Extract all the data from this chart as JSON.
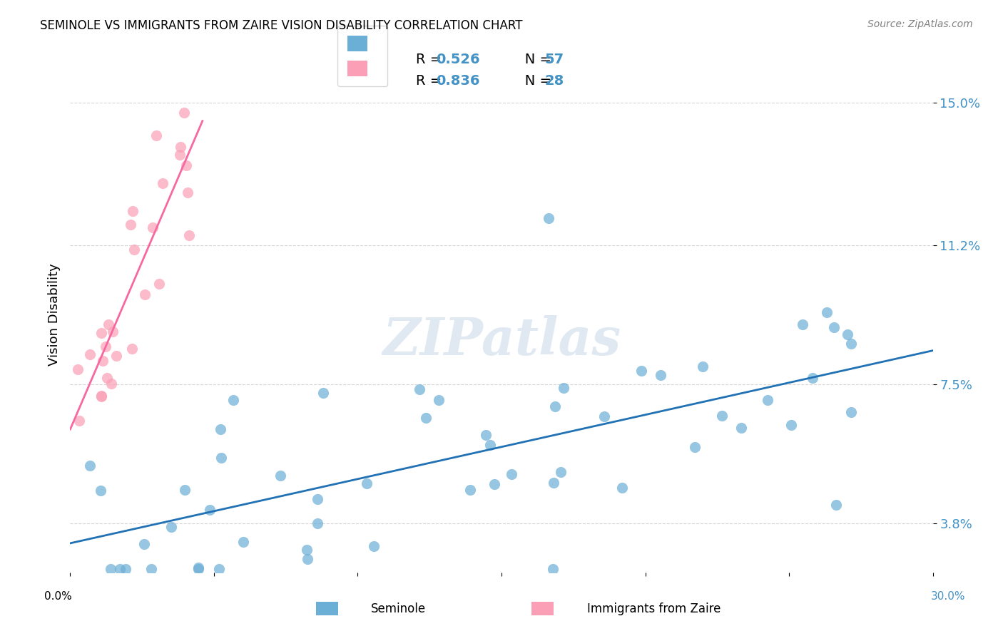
{
  "title": "SEMINOLE VS IMMIGRANTS FROM ZAIRE VISION DISABILITY CORRELATION CHART",
  "source": "Source: ZipAtlas.com",
  "ylabel": "Vision Disability",
  "yticks": [
    0.038,
    0.075,
    0.112,
    0.15
  ],
  "ytick_labels": [
    "3.8%",
    "7.5%",
    "11.2%",
    "15.0%"
  ],
  "xlim": [
    0.0,
    0.3
  ],
  "ylim": [
    0.025,
    0.162
  ],
  "legend_r1": "R = 0.526",
  "legend_n1": "N = 57",
  "legend_r2": "R = 0.836",
  "legend_n2": "N = 28",
  "color_blue": "#6baed6",
  "color_pink": "#fa9fb5",
  "color_blue_line": "#2171b5",
  "color_pink_line": "#f768a1",
  "color_legend_r": "#4292c6",
  "color_axis_labels": "#4292c6",
  "watermark": "ZIPatlas",
  "background_color": "#ffffff",
  "grid_color": "#cccccc"
}
